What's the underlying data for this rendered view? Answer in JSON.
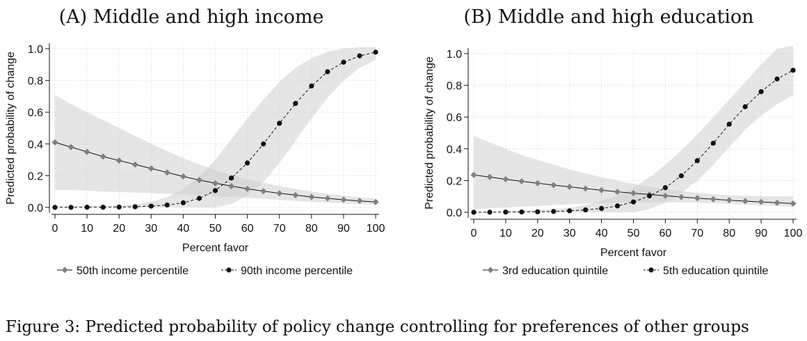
{
  "caption": "Figure 3: Predicted probability of policy change controlling for preferences of other groups",
  "chart_data": [
    {
      "type": "line",
      "title": "(A) Middle and high income",
      "xlabel": "Percent favor",
      "ylabel": "Predicted probability of change",
      "xlim": [
        0,
        100
      ],
      "ylim": [
        0,
        1
      ],
      "xticks": [
        "0",
        "10",
        "20",
        "30",
        "40",
        "50",
        "60",
        "70",
        "80",
        "90",
        "100"
      ],
      "yticks": [
        "0.0",
        "0.2",
        "0.4",
        "0.6",
        "0.8",
        "1.0"
      ],
      "grid": true,
      "legend_position": "bottom",
      "x": [
        0,
        5,
        10,
        15,
        20,
        25,
        30,
        35,
        40,
        45,
        50,
        55,
        60,
        65,
        70,
        75,
        80,
        85,
        90,
        95,
        100
      ],
      "series": [
        {
          "name": "50th income percentile",
          "marker": "diamond",
          "color": "#808080",
          "line": "solid",
          "values": [
            0.41,
            0.38,
            0.35,
            0.32,
            0.295,
            0.27,
            0.245,
            0.22,
            0.195,
            0.172,
            0.152,
            0.134,
            0.117,
            0.102,
            0.089,
            0.077,
            0.066,
            0.057,
            0.048,
            0.041,
            0.034
          ],
          "ci_low": [
            0.11,
            0.11,
            0.105,
            0.1,
            0.097,
            0.093,
            0.09,
            0.086,
            0.082,
            0.077,
            0.072,
            0.066,
            0.06,
            0.053,
            0.047,
            0.041,
            0.035,
            0.03,
            0.025,
            0.021,
            0.018
          ],
          "ci_high": [
            0.71,
            0.65,
            0.6,
            0.55,
            0.5,
            0.45,
            0.4,
            0.355,
            0.31,
            0.27,
            0.235,
            0.205,
            0.178,
            0.155,
            0.134,
            0.116,
            0.1,
            0.086,
            0.074,
            0.064,
            0.055
          ]
        },
        {
          "name": "90th income percentile",
          "marker": "circle",
          "color": "#111111",
          "line": "dashed",
          "values": [
            0.0,
            0.0,
            0.001,
            0.001,
            0.002,
            0.004,
            0.008,
            0.015,
            0.029,
            0.057,
            0.106,
            0.185,
            0.28,
            0.4,
            0.53,
            0.655,
            0.765,
            0.855,
            0.915,
            0.955,
            0.978
          ],
          "ci_low": [
            0,
            0,
            0,
            0,
            0,
            0,
            0,
            0,
            0,
            0,
            0,
            0.02,
            0.075,
            0.16,
            0.28,
            0.42,
            0.56,
            0.69,
            0.8,
            0.88,
            0.93
          ],
          "ci_high": [
            0.01,
            0.01,
            0.01,
            0.01,
            0.01,
            0.02,
            0.035,
            0.065,
            0.115,
            0.195,
            0.3,
            0.43,
            0.56,
            0.68,
            0.79,
            0.88,
            0.94,
            0.98,
            1.0,
            1.01,
            1.01
          ]
        }
      ]
    },
    {
      "type": "line",
      "title": "(B) Middle and high education",
      "xlabel": "Percent favor",
      "ylabel": "Predicted probability of change",
      "xlim": [
        0,
        100
      ],
      "ylim": [
        0,
        1
      ],
      "xticks": [
        "0",
        "10",
        "20",
        "30",
        "40",
        "50",
        "60",
        "70",
        "80",
        "90",
        "100"
      ],
      "yticks": [
        "0.0",
        "0.2",
        "0.4",
        "0.6",
        "0.8",
        "1.0"
      ],
      "grid": true,
      "legend_position": "bottom",
      "x": [
        0,
        5,
        10,
        15,
        20,
        25,
        30,
        35,
        40,
        45,
        50,
        55,
        60,
        65,
        70,
        75,
        80,
        85,
        90,
        95,
        100
      ],
      "series": [
        {
          "name": "3rd education quintile",
          "marker": "diamond",
          "color": "#808080",
          "line": "solid",
          "values": [
            0.235,
            0.222,
            0.208,
            0.195,
            0.183,
            0.171,
            0.16,
            0.149,
            0.139,
            0.129,
            0.12,
            0.112,
            0.104,
            0.096,
            0.089,
            0.082,
            0.076,
            0.07,
            0.065,
            0.06,
            0.055
          ],
          "ci_low": [
            0.02,
            0.025,
            0.03,
            0.035,
            0.04,
            0.045,
            0.05,
            0.055,
            0.058,
            0.06,
            0.062,
            0.063,
            0.063,
            0.062,
            0.06,
            0.057,
            0.053,
            0.049,
            0.045,
            0.04,
            0.035
          ],
          "ci_high": [
            0.48,
            0.44,
            0.4,
            0.36,
            0.33,
            0.3,
            0.27,
            0.245,
            0.22,
            0.2,
            0.18,
            0.162,
            0.146,
            0.133,
            0.122,
            0.114,
            0.108,
            0.104,
            0.101,
            0.1,
            0.1
          ]
        },
        {
          "name": "5th education quintile",
          "marker": "circle",
          "color": "#111111",
          "line": "dashed",
          "values": [
            0.0,
            0.0,
            0.001,
            0.002,
            0.003,
            0.005,
            0.009,
            0.015,
            0.024,
            0.04,
            0.065,
            0.103,
            0.155,
            0.23,
            0.325,
            0.435,
            0.555,
            0.665,
            0.76,
            0.84,
            0.895
          ],
          "ci_low": [
            0,
            0,
            0,
            0,
            0,
            0,
            0,
            0,
            0,
            0,
            0,
            0.02,
            0.06,
            0.12,
            0.2,
            0.3,
            0.41,
            0.52,
            0.61,
            0.68,
            0.74
          ],
          "ci_high": [
            0.005,
            0.006,
            0.008,
            0.01,
            0.014,
            0.02,
            0.03,
            0.045,
            0.07,
            0.105,
            0.155,
            0.22,
            0.3,
            0.39,
            0.49,
            0.6,
            0.71,
            0.82,
            0.93,
            1.03,
            1.05
          ]
        }
      ]
    }
  ]
}
